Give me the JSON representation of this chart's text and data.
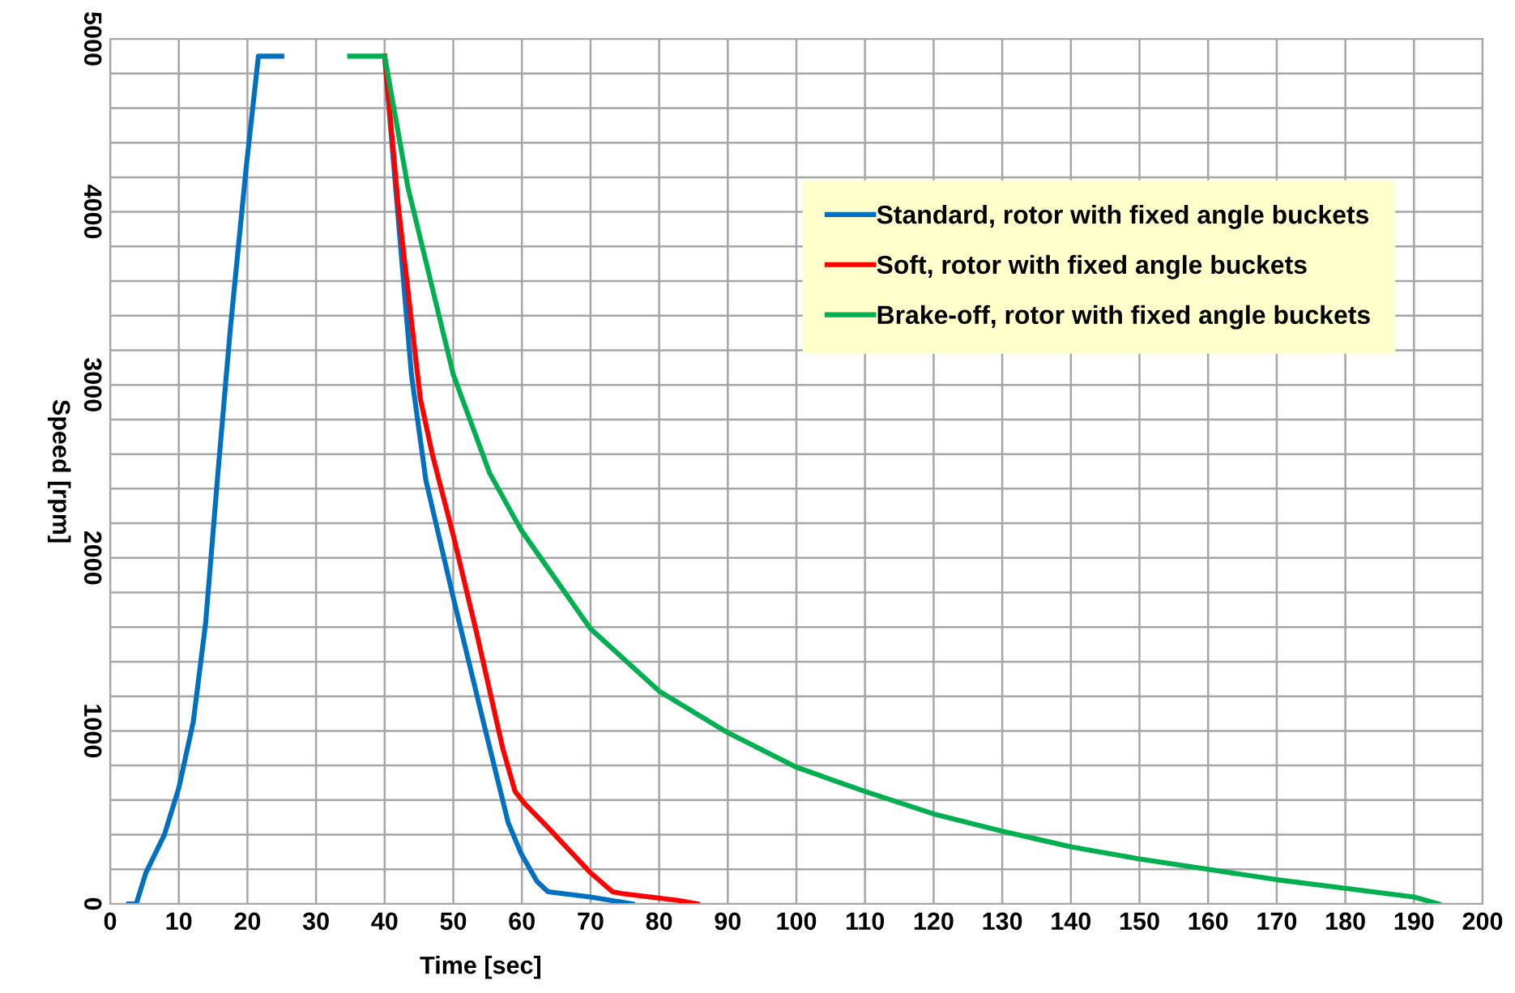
{
  "chart_data": {
    "type": "line",
    "xlabel": "Time [sec]",
    "ylabel": "Speed [rpm]",
    "xlim": [
      0,
      200
    ],
    "xticks": [
      0,
      10,
      20,
      30,
      40,
      50,
      60,
      70,
      80,
      90,
      100,
      110,
      120,
      130,
      140,
      150,
      160,
      170,
      180,
      190,
      200
    ],
    "ylim": [
      0,
      5000
    ],
    "yticks": [
      0,
      {
        "value": 200,
        "label": null
      },
      {
        "value": 400,
        "label": null
      },
      {
        "value": 600,
        "label": null
      },
      {
        "value": 800,
        "label": null
      },
      1000,
      {
        "value": 1200,
        "label": null
      },
      {
        "value": 1400,
        "label": null
      },
      {
        "value": 1600,
        "label": null
      },
      {
        "value": 1800,
        "label": null
      },
      2000,
      {
        "value": 2200,
        "label": null
      },
      {
        "value": 2400,
        "label": null
      },
      {
        "value": 2600,
        "label": null
      },
      {
        "value": 2800,
        "label": null
      },
      3000,
      {
        "value": 3200,
        "label": null
      },
      {
        "value": 3400,
        "label": null
      },
      {
        "value": 3600,
        "label": null
      },
      {
        "value": 3800,
        "label": null
      },
      4000,
      {
        "value": 4200,
        "label": null
      },
      {
        "value": 4400,
        "label": null
      },
      {
        "value": 4600,
        "label": null
      },
      {
        "value": 4800,
        "label": null
      },
      5000
    ],
    "grid": true,
    "legend": "top right",
    "marker": "none",
    "line_style": "solid",
    "series": [
      {
        "name": "Standard, rotor with fixed angle buckets",
        "color": "#0070c0",
        "x": [
          2.7,
          3.8,
          5.2,
          7.9,
          10,
          12.1,
          13.9,
          15.7,
          17.5,
          19.8,
          21.6,
          25,
          null,
          40,
          41.6,
          43.9,
          46,
          50,
          54.4,
          58,
          59.9,
          62.2,
          63.8,
          70,
          76.1
        ],
        "values": [
          0,
          0,
          180,
          400,
          670,
          1050,
          1620,
          2490,
          3320,
          4250,
          4900,
          4900,
          null,
          4900,
          4140,
          3060,
          2450,
          1770,
          1050,
          470,
          290,
          130,
          70,
          40,
          0
        ]
      },
      {
        "name": "Soft, rotor with fixed angle buckets",
        "color": "#ff0000",
        "x": [
          40,
          42,
          45.2,
          47,
          50,
          53.5,
          57.2,
          59,
          60.4,
          63.6,
          70,
          73.2,
          74.6,
          82.8,
          85.6
        ],
        "values": [
          4900,
          4030,
          2920,
          2590,
          2130,
          1550,
          900,
          650,
          580,
          450,
          180,
          70,
          60,
          20,
          0
        ]
      },
      {
        "name": "Brake-off, rotor with fixed angle buckets",
        "color": "#00b050",
        "x": [
          34.9,
          40,
          43.4,
          50,
          55.3,
          59.9,
          70,
          80,
          90,
          100,
          110,
          120,
          130,
          140,
          150,
          160,
          170,
          180,
          190,
          193.6
        ],
        "values": [
          4900,
          4900,
          4140,
          3060,
          2490,
          2160,
          1590,
          1230,
          990,
          790,
          650,
          520,
          420,
          330,
          260,
          200,
          140,
          90,
          40,
          0
        ]
      }
    ]
  }
}
